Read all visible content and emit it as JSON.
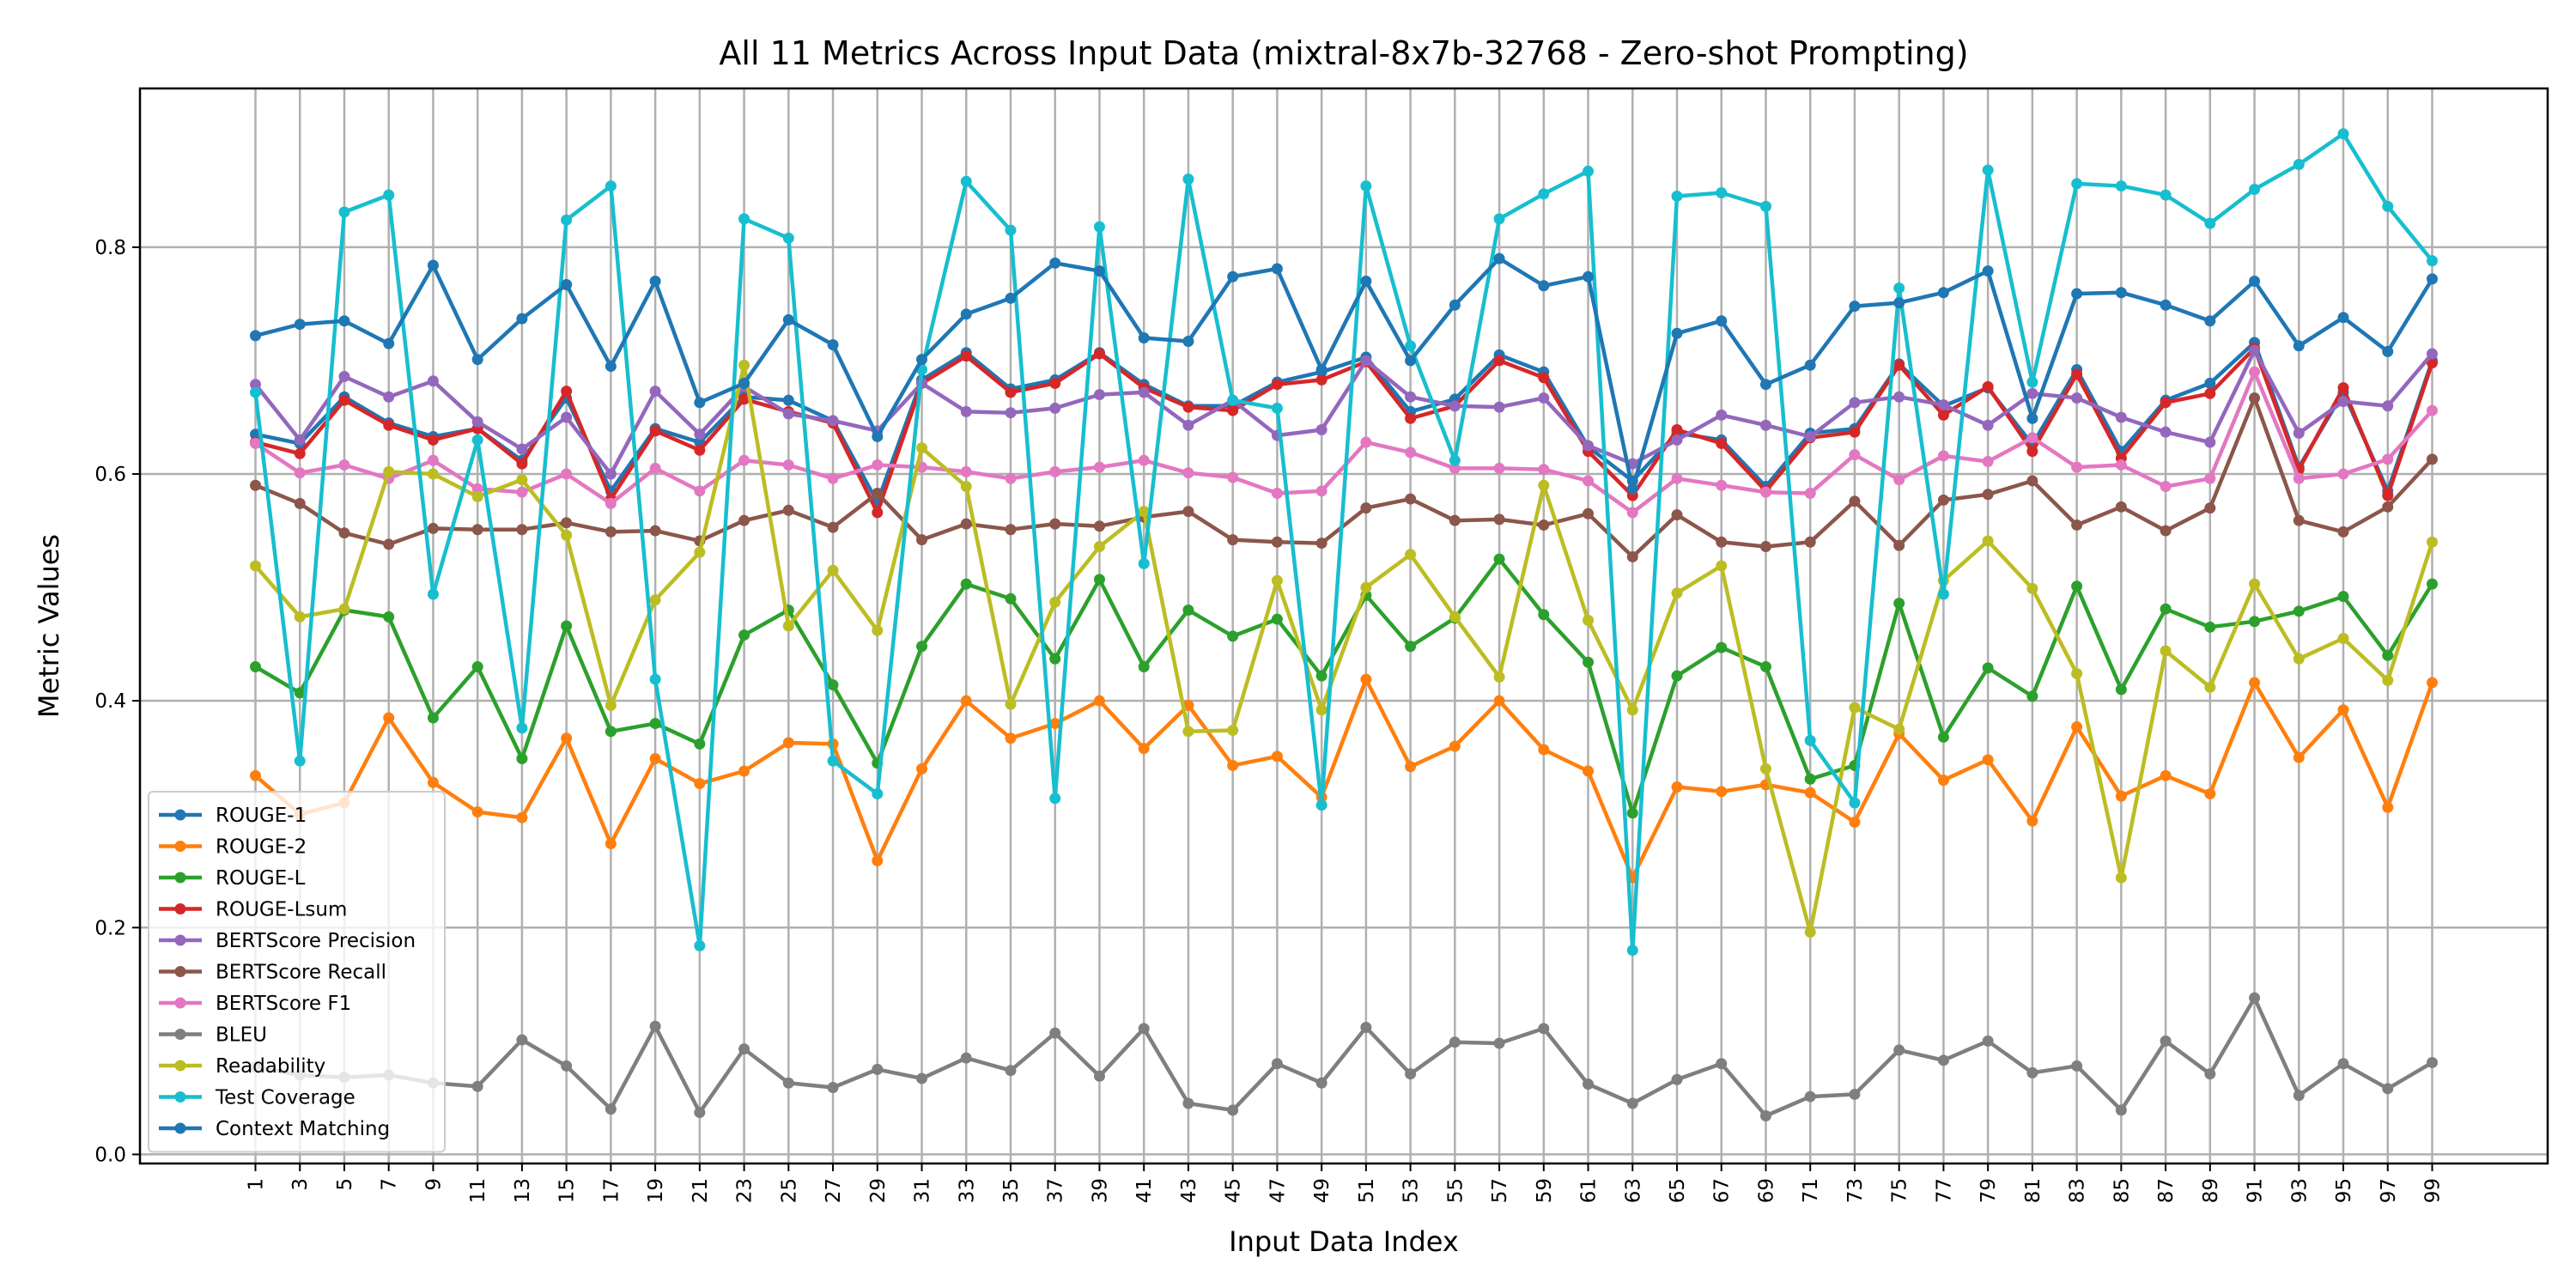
{
  "chart_data": {
    "type": "line",
    "title": "All 11 Metrics Across Input Data (mixtral-8x7b-32768 - Zero-shot Prompting)",
    "xlabel": "Input Data Index",
    "ylabel": "Metric Values",
    "ylim": [
      -0.008,
      0.94
    ],
    "xlim": [
      -4.2,
      104.2
    ],
    "y_ticks": [
      0.0,
      0.2,
      0.4,
      0.6,
      0.8
    ],
    "grid": true,
    "legend_position": "lower-left",
    "x": [
      1,
      3,
      5,
      7,
      9,
      11,
      13,
      15,
      17,
      19,
      21,
      23,
      25,
      27,
      29,
      31,
      33,
      35,
      37,
      39,
      41,
      43,
      45,
      47,
      49,
      51,
      53,
      55,
      57,
      59,
      61,
      63,
      65,
      67,
      69,
      71,
      73,
      75,
      77,
      79,
      81,
      83,
      85,
      87,
      89,
      91,
      93,
      95,
      97,
      99
    ],
    "series": [
      {
        "name": "ROUGE-1",
        "color": "#1f77b4",
        "values": [
          0.635,
          0.627,
          0.668,
          0.645,
          0.633,
          0.64,
          0.612,
          0.667,
          0.585,
          0.64,
          0.628,
          0.668,
          0.665,
          0.647,
          0.575,
          0.683,
          0.707,
          0.675,
          0.683,
          0.707,
          0.679,
          0.66,
          0.66,
          0.681,
          0.69,
          0.703,
          0.655,
          0.666,
          0.705,
          0.69,
          0.624,
          0.594,
          0.636,
          0.63,
          0.589,
          0.636,
          0.64,
          0.697,
          0.66,
          0.676,
          0.626,
          0.692,
          0.62,
          0.665,
          0.68,
          0.716,
          0.606,
          0.672,
          0.585,
          0.7
        ]
      },
      {
        "name": "ROUGE-2",
        "color": "#ff7f0e",
        "values": [
          0.334,
          0.3,
          0.31,
          0.385,
          0.328,
          0.302,
          0.297,
          0.367,
          0.274,
          0.349,
          0.327,
          0.338,
          0.363,
          0.362,
          0.259,
          0.34,
          0.4,
          0.367,
          0.38,
          0.4,
          0.358,
          0.396,
          0.343,
          0.351,
          0.315,
          0.419,
          0.342,
          0.36,
          0.4,
          0.357,
          0.338,
          0.244,
          0.324,
          0.32,
          0.326,
          0.319,
          0.293,
          0.371,
          0.33,
          0.348,
          0.294,
          0.377,
          0.316,
          0.334,
          0.318,
          0.416,
          0.35,
          0.392,
          0.306,
          0.416
        ]
      },
      {
        "name": "ROUGE-L",
        "color": "#2ca02c",
        "values": [
          0.43,
          0.407,
          0.48,
          0.474,
          0.385,
          0.43,
          0.349,
          0.466,
          0.373,
          0.38,
          0.362,
          0.458,
          0.48,
          0.414,
          0.345,
          0.448,
          0.503,
          0.49,
          0.437,
          0.507,
          0.43,
          0.48,
          0.457,
          0.472,
          0.422,
          0.493,
          0.448,
          0.473,
          0.525,
          0.476,
          0.434,
          0.301,
          0.422,
          0.447,
          0.43,
          0.331,
          0.343,
          0.486,
          0.368,
          0.429,
          0.404,
          0.501,
          0.41,
          0.481,
          0.465,
          0.47,
          0.479,
          0.492,
          0.44,
          0.503
        ]
      },
      {
        "name": "ROUGE-Lsum",
        "color": "#d62728",
        "values": [
          0.628,
          0.618,
          0.665,
          0.643,
          0.63,
          0.64,
          0.609,
          0.673,
          0.578,
          0.638,
          0.621,
          0.666,
          0.655,
          0.645,
          0.566,
          0.68,
          0.704,
          0.672,
          0.68,
          0.706,
          0.676,
          0.659,
          0.656,
          0.679,
          0.683,
          0.699,
          0.649,
          0.66,
          0.7,
          0.685,
          0.62,
          0.581,
          0.639,
          0.627,
          0.585,
          0.632,
          0.637,
          0.696,
          0.652,
          0.677,
          0.62,
          0.688,
          0.614,
          0.663,
          0.671,
          0.711,
          0.604,
          0.676,
          0.581,
          0.698
        ]
      },
      {
        "name": "BERTScore Precision",
        "color": "#9467bd",
        "values": [
          0.679,
          0.63,
          0.686,
          0.668,
          0.682,
          0.646,
          0.622,
          0.65,
          0.6,
          0.673,
          0.635,
          0.677,
          0.653,
          0.647,
          0.638,
          0.68,
          0.655,
          0.654,
          0.658,
          0.67,
          0.672,
          0.643,
          0.665,
          0.634,
          0.639,
          0.7,
          0.668,
          0.66,
          0.659,
          0.667,
          0.625,
          0.609,
          0.63,
          0.652,
          0.643,
          0.633,
          0.663,
          0.668,
          0.661,
          0.643,
          0.671,
          0.667,
          0.65,
          0.637,
          0.628,
          0.709,
          0.636,
          0.664,
          0.66,
          0.706
        ]
      },
      {
        "name": "BERTScore Recall",
        "color": "#8c564b",
        "values": [
          0.59,
          0.574,
          0.548,
          0.538,
          0.552,
          0.551,
          0.551,
          0.557,
          0.549,
          0.55,
          0.541,
          0.559,
          0.568,
          0.553,
          0.583,
          0.542,
          0.556,
          0.551,
          0.556,
          0.554,
          0.562,
          0.567,
          0.542,
          0.54,
          0.539,
          0.57,
          0.578,
          0.559,
          0.56,
          0.555,
          0.565,
          0.527,
          0.564,
          0.54,
          0.536,
          0.54,
          0.576,
          0.537,
          0.577,
          0.582,
          0.594,
          0.555,
          0.571,
          0.55,
          0.57,
          0.667,
          0.559,
          0.549,
          0.571,
          0.613
        ]
      },
      {
        "name": "BERTScore F1",
        "color": "#e377c2",
        "values": [
          0.627,
          0.601,
          0.608,
          0.596,
          0.612,
          0.587,
          0.584,
          0.6,
          0.574,
          0.605,
          0.585,
          0.612,
          0.608,
          0.596,
          0.608,
          0.606,
          0.602,
          0.596,
          0.602,
          0.606,
          0.612,
          0.601,
          0.597,
          0.583,
          0.585,
          0.628,
          0.619,
          0.605,
          0.605,
          0.604,
          0.594,
          0.566,
          0.596,
          0.59,
          0.584,
          0.583,
          0.617,
          0.595,
          0.616,
          0.611,
          0.632,
          0.606,
          0.608,
          0.589,
          0.596,
          0.69,
          0.596,
          0.6,
          0.613,
          0.656
        ]
      },
      {
        "name": "BLEU",
        "color": "#7f7f7f",
        "values": [
          0.077,
          0.07,
          0.068,
          0.07,
          0.063,
          0.06,
          0.101,
          0.078,
          0.04,
          0.113,
          0.037,
          0.093,
          0.063,
          0.059,
          0.075,
          0.067,
          0.085,
          0.074,
          0.107,
          0.069,
          0.111,
          0.045,
          0.039,
          0.08,
          0.063,
          0.112,
          0.071,
          0.099,
          0.098,
          0.111,
          0.062,
          0.045,
          0.066,
          0.08,
          0.034,
          0.051,
          0.053,
          0.092,
          0.083,
          0.1,
          0.072,
          0.078,
          0.039,
          0.1,
          0.071,
          0.138,
          0.052,
          0.08,
          0.058,
          0.081
        ]
      },
      {
        "name": "Readability",
        "color": "#bcbd22",
        "values": [
          0.519,
          0.474,
          0.481,
          0.602,
          0.6,
          0.58,
          0.595,
          0.546,
          0.396,
          0.489,
          0.531,
          0.696,
          0.466,
          0.515,
          0.462,
          0.623,
          0.589,
          0.397,
          0.487,
          0.536,
          0.567,
          0.373,
          0.374,
          0.506,
          0.392,
          0.5,
          0.529,
          0.474,
          0.421,
          0.59,
          0.471,
          0.392,
          0.495,
          0.519,
          0.34,
          0.196,
          0.394,
          0.375,
          0.506,
          0.541,
          0.499,
          0.424,
          0.244,
          0.444,
          0.412,
          0.503,
          0.437,
          0.455,
          0.418,
          0.54
        ]
      },
      {
        "name": "Test Coverage",
        "color": "#17becf",
        "values": [
          0.672,
          0.347,
          0.831,
          0.846,
          0.494,
          0.63,
          0.376,
          0.824,
          0.854,
          0.419,
          0.184,
          0.825,
          0.808,
          0.347,
          0.318,
          0.692,
          0.858,
          0.815,
          0.314,
          0.818,
          0.521,
          0.86,
          0.665,
          0.658,
          0.308,
          0.854,
          0.713,
          0.612,
          0.825,
          0.847,
          0.867,
          0.18,
          0.845,
          0.848,
          0.836,
          0.365,
          0.31,
          0.764,
          0.494,
          0.868,
          0.681,
          0.856,
          0.854,
          0.846,
          0.821,
          0.851,
          0.873,
          0.9,
          0.836,
          0.788
        ]
      },
      {
        "name": "Context Matching",
        "color": "#1f77b4",
        "values": [
          0.722,
          0.732,
          0.735,
          0.715,
          0.784,
          0.701,
          0.737,
          0.767,
          0.695,
          0.77,
          0.663,
          0.68,
          0.736,
          0.714,
          0.633,
          0.701,
          0.741,
          0.755,
          0.786,
          0.779,
          0.72,
          0.717,
          0.774,
          0.781,
          0.692,
          0.77,
          0.7,
          0.749,
          0.79,
          0.766,
          0.774,
          0.587,
          0.724,
          0.735,
          0.679,
          0.696,
          0.748,
          0.751,
          0.76,
          0.779,
          0.649,
          0.759,
          0.76,
          0.749,
          0.735,
          0.77,
          0.713,
          0.738,
          0.708,
          0.772
        ]
      }
    ]
  }
}
